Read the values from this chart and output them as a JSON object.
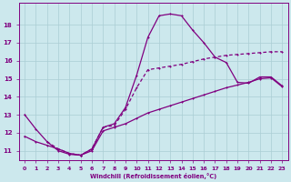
{
  "xlabel": "Windchill (Refroidissement éolien,°C)",
  "background_color": "#cce8ed",
  "grid_color": "#aacdd4",
  "line_color": "#800080",
  "xlim": [
    -0.5,
    23.5
  ],
  "ylim": [
    10.5,
    19.2
  ],
  "xticks": [
    0,
    1,
    2,
    3,
    4,
    5,
    6,
    7,
    8,
    9,
    10,
    11,
    12,
    13,
    14,
    15,
    16,
    17,
    18,
    19,
    20,
    21,
    22,
    23
  ],
  "yticks": [
    11,
    12,
    13,
    14,
    15,
    16,
    17,
    18
  ],
  "series1_x": [
    0,
    1,
    2,
    3,
    4,
    5,
    6,
    7,
    8,
    9,
    10,
    11,
    12,
    13,
    14,
    15,
    16,
    17,
    18,
    19,
    20,
    21,
    22,
    23
  ],
  "series1_y": [
    13.0,
    12.2,
    11.5,
    11.0,
    10.8,
    10.75,
    11.1,
    12.3,
    12.5,
    13.4,
    15.2,
    17.3,
    18.5,
    18.6,
    18.5,
    17.7,
    17.0,
    16.2,
    15.9,
    14.8,
    14.75,
    15.1,
    15.1,
    14.6
  ],
  "series2_x": [
    0,
    1,
    2,
    3,
    4,
    5,
    6,
    7,
    8,
    9,
    10,
    11,
    12,
    13,
    14,
    15,
    16,
    17,
    18,
    19,
    20,
    21,
    22,
    23
  ],
  "series2_y": [
    11.8,
    11.5,
    11.3,
    11.1,
    10.85,
    10.75,
    11.0,
    12.1,
    12.3,
    12.5,
    12.8,
    13.1,
    13.3,
    13.5,
    13.7,
    13.9,
    14.1,
    14.3,
    14.5,
    14.65,
    14.8,
    15.0,
    15.05,
    14.55
  ],
  "series3_x": [
    2,
    3,
    4,
    5,
    6,
    7,
    8,
    9,
    10,
    11,
    12,
    13,
    14,
    15,
    16,
    17,
    18,
    19,
    20,
    21,
    22,
    23
  ],
  "series3_y": [
    11.5,
    11.1,
    10.85,
    10.75,
    11.1,
    12.3,
    12.4,
    13.3,
    14.5,
    15.5,
    15.6,
    15.7,
    15.8,
    15.95,
    16.1,
    16.2,
    16.3,
    16.35,
    16.4,
    16.45,
    16.5,
    16.5
  ],
  "series3_style": "--"
}
